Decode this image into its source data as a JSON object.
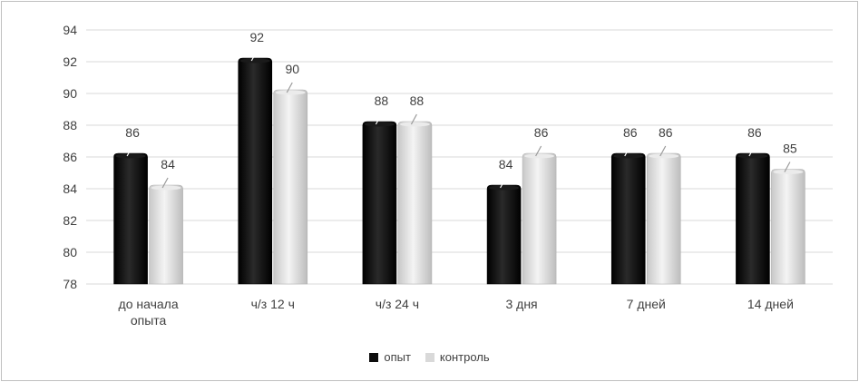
{
  "chart_data": {
    "type": "bar",
    "title": "",
    "xlabel": "",
    "ylabel": "",
    "categories": [
      "до начала\nопыта",
      "ч/з 12 ч",
      "ч/з 24 ч",
      "3 дня",
      "7 дней",
      "14 дней"
    ],
    "series": [
      {
        "name": "опыт",
        "color": "#0d0d0d",
        "values": [
          86,
          92,
          88,
          84,
          86,
          86
        ]
      },
      {
        "name": "контроль",
        "color": "#d9d9d9",
        "values": [
          84,
          90,
          88,
          86,
          86,
          85
        ]
      }
    ],
    "ylim": [
      78,
      94
    ],
    "yticks": [
      78,
      80,
      82,
      84,
      86,
      88,
      90,
      92,
      94
    ],
    "grid": true,
    "legend_position": "bottom",
    "data_labels": true
  }
}
